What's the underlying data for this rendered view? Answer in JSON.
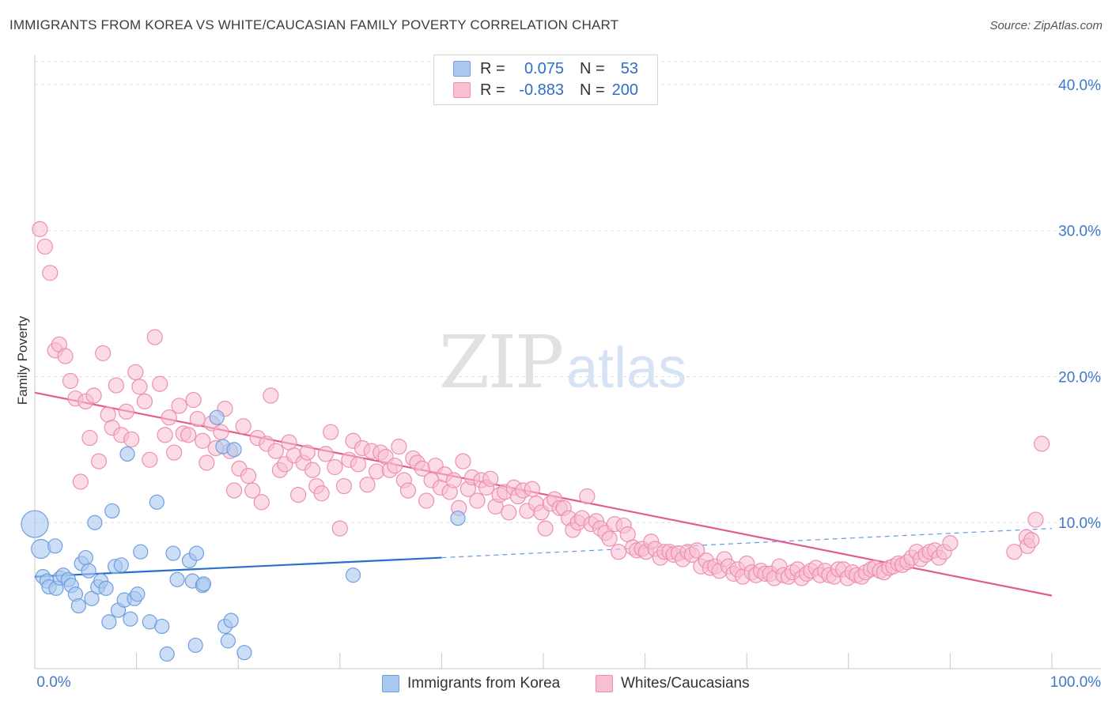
{
  "title": "IMMIGRANTS FROM KOREA VS WHITE/CAUCASIAN FAMILY POVERTY CORRELATION CHART",
  "source": "Source: ZipAtlas.com",
  "watermark": {
    "zip": "ZIP",
    "atlas": "atlas"
  },
  "colors": {
    "korea_fill": "#a9c8f0",
    "korea_stroke": "#6f9fe0",
    "korea_line": "#2a6fcc",
    "white_fill": "#f7bfd1",
    "white_stroke": "#ee8fae",
    "white_line": "#e35d8a",
    "axis_label": "#3f78c8",
    "grid": "#dddddd"
  },
  "legend": {
    "rows": [
      {
        "r_label": "R =",
        "r_value": "0.075",
        "n_label": "N =",
        "n_value": "53"
      },
      {
        "r_label": "R =",
        "r_value": "-0.883",
        "n_label": "N =",
        "n_value": "200"
      }
    ]
  },
  "bottom_legend": {
    "korea": "Immigrants from Korea",
    "white": "Whites/Caucasians"
  },
  "chart_data": {
    "type": "scatter",
    "xlabel": "",
    "ylabel": "Family Poverty",
    "xlim": [
      0,
      100
    ],
    "ylim": [
      0,
      42
    ],
    "x_tick_labels": [
      "0.0%",
      "100.0%"
    ],
    "y_ticks": [
      10,
      20,
      30,
      40
    ],
    "y_tick_labels": [
      "10.0%",
      "20.0%",
      "30.0%",
      "40.0%"
    ],
    "grid": true,
    "legend_position": "top-center",
    "series": [
      {
        "name": "Immigrants from Korea",
        "r": 0.075,
        "n": 53,
        "trend": {
          "x0": 0,
          "y0": 6.3,
          "x1": 40,
          "y1": 7.6,
          "dashed_to": 100,
          "dashed_y1": 9.6
        },
        "points": [
          [
            0,
            9.9,
            3
          ],
          [
            0.6,
            8.2,
            2
          ],
          [
            2,
            8.4,
            1
          ],
          [
            0.8,
            6.3,
            1
          ],
          [
            1.2,
            6.0,
            1
          ],
          [
            1.4,
            5.6,
            1
          ],
          [
            2.1,
            5.5,
            1
          ],
          [
            2.5,
            6.2,
            1
          ],
          [
            2.8,
            6.4,
            1
          ],
          [
            3.3,
            6.1,
            1
          ],
          [
            3.6,
            5.7,
            1
          ],
          [
            4.0,
            5.1,
            1
          ],
          [
            4.3,
            4.3,
            1
          ],
          [
            4.6,
            7.2,
            1
          ],
          [
            5.0,
            7.6,
            1
          ],
          [
            5.3,
            6.7,
            1
          ],
          [
            5.6,
            4.8,
            1
          ],
          [
            5.9,
            10.0,
            1
          ],
          [
            6.2,
            5.6,
            1
          ],
          [
            6.5,
            6.0,
            1
          ],
          [
            7.0,
            5.5,
            1
          ],
          [
            7.3,
            3.2,
            1
          ],
          [
            7.6,
            10.8,
            1
          ],
          [
            7.9,
            7.0,
            1
          ],
          [
            8.2,
            4.0,
            1
          ],
          [
            8.5,
            7.1,
            1
          ],
          [
            8.8,
            4.7,
            1
          ],
          [
            9.1,
            14.7,
            1
          ],
          [
            9.4,
            3.4,
            1
          ],
          [
            9.8,
            4.8,
            1
          ],
          [
            10.1,
            5.1,
            1
          ],
          [
            10.4,
            8.0,
            1
          ],
          [
            11.3,
            3.2,
            1
          ],
          [
            12.0,
            11.4,
            1
          ],
          [
            12.5,
            2.9,
            1
          ],
          [
            13.0,
            1.0,
            1
          ],
          [
            13.6,
            7.9,
            1
          ],
          [
            14.0,
            6.1,
            1
          ],
          [
            15.2,
            7.4,
            1
          ],
          [
            15.5,
            6.0,
            1
          ],
          [
            15.8,
            1.6,
            1
          ],
          [
            16.5,
            5.7,
            1
          ],
          [
            16.6,
            5.8,
            1
          ],
          [
            17.9,
            17.2,
            1
          ],
          [
            18.5,
            15.2,
            1
          ],
          [
            18.7,
            2.9,
            1
          ],
          [
            19.0,
            1.9,
            1
          ],
          [
            19.3,
            3.3,
            1
          ],
          [
            19.6,
            15.0,
            1
          ],
          [
            20.6,
            1.1,
            1
          ],
          [
            41.6,
            10.3,
            1
          ],
          [
            31.3,
            6.4,
            1
          ],
          [
            15.9,
            7.9,
            1
          ]
        ]
      },
      {
        "name": "Whites/Caucasians",
        "r": -0.883,
        "n": 200,
        "trend": {
          "x0": 0,
          "y0": 18.9,
          "x1": 100,
          "y1": 5.0
        },
        "points": [
          [
            0.5,
            30.1
          ],
          [
            1,
            28.9
          ],
          [
            1.5,
            27.1
          ],
          [
            2,
            21.8
          ],
          [
            2.4,
            22.2
          ],
          [
            3,
            21.4
          ],
          [
            3.5,
            19.7
          ],
          [
            4,
            18.5
          ],
          [
            4.5,
            12.8
          ],
          [
            5,
            18.3
          ],
          [
            5.4,
            15.8
          ],
          [
            5.8,
            18.7
          ],
          [
            6.3,
            14.2
          ],
          [
            6.7,
            21.6
          ],
          [
            7.2,
            17.4
          ],
          [
            7.6,
            16.5
          ],
          [
            8.0,
            19.4
          ],
          [
            8.5,
            16.0
          ],
          [
            9.0,
            17.6
          ],
          [
            9.5,
            15.7
          ],
          [
            9.9,
            20.3
          ],
          [
            10.3,
            19.3
          ],
          [
            10.8,
            18.3
          ],
          [
            11.3,
            14.3
          ],
          [
            11.8,
            22.7
          ],
          [
            12.3,
            19.5
          ],
          [
            12.8,
            16.0
          ],
          [
            13.2,
            17.2
          ],
          [
            13.7,
            14.8
          ],
          [
            14.2,
            18.0
          ],
          [
            14.6,
            16.1
          ],
          [
            15.1,
            16.0
          ],
          [
            15.6,
            18.4
          ],
          [
            16.0,
            17.1
          ],
          [
            16.5,
            15.6
          ],
          [
            16.9,
            14.1
          ],
          [
            17.4,
            16.8
          ],
          [
            17.8,
            15.1
          ],
          [
            18.3,
            16.2
          ],
          [
            18.7,
            17.8
          ],
          [
            19.2,
            14.9
          ],
          [
            19.6,
            12.2
          ],
          [
            20.1,
            13.7
          ],
          [
            20.5,
            16.6
          ],
          [
            21.0,
            13.2
          ],
          [
            21.4,
            12.2
          ],
          [
            21.9,
            15.8
          ],
          [
            22.3,
            11.4
          ],
          [
            22.8,
            15.4
          ],
          [
            23.2,
            18.7
          ],
          [
            23.7,
            14.9
          ],
          [
            24.1,
            13.6
          ],
          [
            24.6,
            14.0
          ],
          [
            25.0,
            15.5
          ],
          [
            25.5,
            14.6
          ],
          [
            25.9,
            11.9
          ],
          [
            26.4,
            14.1
          ],
          [
            26.8,
            14.8
          ],
          [
            27.3,
            13.6
          ],
          [
            27.7,
            12.5
          ],
          [
            28.2,
            12.0
          ],
          [
            28.6,
            14.7
          ],
          [
            29.1,
            16.2
          ],
          [
            29.5,
            13.8
          ],
          [
            30.0,
            9.6
          ],
          [
            30.4,
            12.5
          ],
          [
            30.9,
            14.3
          ],
          [
            31.3,
            15.6
          ],
          [
            31.8,
            14.0
          ],
          [
            32.2,
            15.1
          ],
          [
            32.7,
            12.6
          ],
          [
            33.1,
            14.9
          ],
          [
            33.6,
            13.5
          ],
          [
            34.0,
            14.8
          ],
          [
            34.5,
            14.5
          ],
          [
            34.9,
            13.6
          ],
          [
            35.4,
            13.9
          ],
          [
            35.8,
            15.2
          ],
          [
            36.3,
            12.9
          ],
          [
            36.7,
            12.2
          ],
          [
            37.2,
            14.4
          ],
          [
            37.6,
            14.1
          ],
          [
            38.1,
            13.7
          ],
          [
            38.5,
            11.5
          ],
          [
            39.0,
            12.9
          ],
          [
            39.4,
            13.9
          ],
          [
            39.9,
            12.4
          ],
          [
            40.3,
            13.3
          ],
          [
            40.8,
            12.1
          ],
          [
            41.2,
            12.9
          ],
          [
            41.7,
            11.0
          ],
          [
            42.1,
            14.2
          ],
          [
            42.6,
            12.3
          ],
          [
            43.0,
            13.1
          ],
          [
            43.5,
            11.5
          ],
          [
            43.9,
            12.9
          ],
          [
            44.4,
            12.4
          ],
          [
            44.8,
            13.0
          ],
          [
            45.3,
            11.1
          ],
          [
            45.7,
            11.9
          ],
          [
            46.2,
            12.1
          ],
          [
            46.6,
            10.7
          ],
          [
            47.1,
            12.4
          ],
          [
            47.5,
            11.8
          ],
          [
            48.0,
            12.2
          ],
          [
            48.4,
            10.8
          ],
          [
            48.9,
            12.3
          ],
          [
            49.3,
            11.3
          ],
          [
            49.8,
            10.7
          ],
          [
            50.2,
            9.6
          ],
          [
            50.7,
            11.3
          ],
          [
            51.1,
            11.6
          ],
          [
            51.6,
            11.0
          ],
          [
            52.0,
            11.0
          ],
          [
            52.5,
            10.3
          ],
          [
            52.9,
            9.5
          ],
          [
            53.4,
            10.0
          ],
          [
            53.8,
            10.3
          ],
          [
            54.3,
            11.8
          ],
          [
            54.7,
            9.9
          ],
          [
            55.2,
            10.1
          ],
          [
            55.6,
            9.6
          ],
          [
            56.1,
            9.3
          ],
          [
            56.5,
            8.9
          ],
          [
            57.0,
            9.9
          ],
          [
            57.4,
            8.0
          ],
          [
            57.9,
            9.8
          ],
          [
            58.3,
            9.2
          ],
          [
            58.8,
            8.3
          ],
          [
            59.2,
            8.1
          ],
          [
            59.7,
            8.2
          ],
          [
            60.1,
            8.0
          ],
          [
            60.6,
            8.7
          ],
          [
            61.0,
            8.2
          ],
          [
            61.5,
            7.6
          ],
          [
            61.9,
            8.0
          ],
          [
            62.4,
            8.0
          ],
          [
            62.8,
            7.8
          ],
          [
            63.3,
            7.9
          ],
          [
            63.7,
            7.5
          ],
          [
            64.2,
            8.0
          ],
          [
            64.6,
            7.8
          ],
          [
            65.1,
            8.1
          ],
          [
            65.5,
            7.0
          ],
          [
            66.0,
            7.4
          ],
          [
            66.4,
            6.9
          ],
          [
            66.9,
            7.0
          ],
          [
            67.3,
            6.7
          ],
          [
            67.8,
            7.5
          ],
          [
            68.2,
            7.0
          ],
          [
            68.7,
            6.5
          ],
          [
            69.1,
            6.8
          ],
          [
            69.6,
            6.3
          ],
          [
            70.0,
            7.2
          ],
          [
            70.5,
            6.6
          ],
          [
            70.9,
            6.4
          ],
          [
            71.4,
            6.7
          ],
          [
            71.8,
            6.5
          ],
          [
            72.3,
            6.5
          ],
          [
            72.7,
            6.2
          ],
          [
            73.2,
            7.0
          ],
          [
            73.6,
            6.4
          ],
          [
            74.1,
            6.3
          ],
          [
            74.5,
            6.6
          ],
          [
            75.0,
            6.8
          ],
          [
            75.4,
            6.2
          ],
          [
            75.9,
            6.5
          ],
          [
            76.3,
            6.7
          ],
          [
            76.8,
            6.9
          ],
          [
            77.2,
            6.4
          ],
          [
            77.7,
            6.7
          ],
          [
            78.1,
            6.4
          ],
          [
            78.6,
            6.3
          ],
          [
            79.0,
            6.8
          ],
          [
            79.5,
            6.8
          ],
          [
            79.9,
            6.2
          ],
          [
            80.4,
            6.6
          ],
          [
            80.8,
            6.4
          ],
          [
            81.3,
            6.3
          ],
          [
            81.7,
            6.6
          ],
          [
            82.2,
            6.8
          ],
          [
            82.6,
            6.9
          ],
          [
            83.1,
            6.7
          ],
          [
            83.5,
            6.6
          ],
          [
            84.0,
            6.9
          ],
          [
            84.4,
            7.0
          ],
          [
            84.9,
            7.2
          ],
          [
            85.3,
            7.1
          ],
          [
            85.8,
            7.3
          ],
          [
            86.2,
            7.6
          ],
          [
            86.7,
            8.0
          ],
          [
            87.1,
            7.5
          ],
          [
            87.6,
            7.8
          ],
          [
            88.0,
            8.0
          ],
          [
            88.5,
            8.1
          ],
          [
            88.9,
            7.6
          ],
          [
            89.4,
            8.0
          ],
          [
            90.0,
            8.6
          ],
          [
            97.5,
            9.0
          ],
          [
            99.0,
            15.4
          ],
          [
            98.4,
            10.2
          ],
          [
            97.6,
            8.4
          ],
          [
            98.0,
            8.8
          ],
          [
            96.3,
            8.0
          ]
        ]
      }
    ]
  }
}
